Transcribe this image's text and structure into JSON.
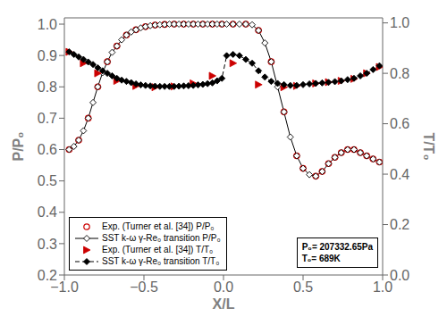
{
  "chart_data": {
    "type": "line",
    "xlabel": "X/L",
    "ylabel": "P/P₀",
    "y2label": "T/T₀",
    "xlim": [
      -1,
      1
    ],
    "xticks": [
      {
        "value": -1,
        "label": "−1.0"
      },
      {
        "value": -0.5,
        "label": "−0.5"
      },
      {
        "value": 0,
        "label": "0.0"
      },
      0.5,
      {
        "value": 1,
        "label": "1.0"
      }
    ],
    "ylim": [
      0.2,
      1.02
    ],
    "yticks": [
      0.2,
      0.3,
      0.4,
      0.5,
      0.6,
      0.7,
      0.8,
      0.9,
      {
        "value": 1,
        "label": "1.0"
      }
    ],
    "y2lim": [
      0.0,
      1.02
    ],
    "y2ticks": [
      {
        "value": 0,
        "label": "0.0"
      },
      0.2,
      0.4,
      0.6,
      0.8,
      {
        "value": 1,
        "label": "1.0"
      }
    ],
    "grid": false,
    "legend": "lower left",
    "annotation": [
      "P₀= 207332.65Pa",
      "T₀= 689K"
    ],
    "series": [
      {
        "name": "Exp. (Turner et al. [34]) P/P₀",
        "type": "scatter",
        "color": "#cc0000",
        "marker": "open_circle",
        "line_style": "none",
        "x": [
          -0.97,
          -0.91,
          -0.85,
          -0.79,
          -0.73,
          -0.67,
          -0.61,
          -0.55,
          -0.49,
          -0.43,
          -0.37,
          -0.31,
          -0.25,
          -0.19,
          -0.13,
          -0.07,
          -0.01,
          0.06,
          0.14,
          0.22,
          0.3,
          0.38,
          0.46,
          0.5,
          0.58,
          0.62,
          0.66,
          0.7,
          0.74,
          0.78,
          0.82,
          0.86,
          0.9,
          0.94,
          0.98
        ],
        "values": [
          0.6,
          0.63,
          0.7,
          0.8,
          0.88,
          0.93,
          0.965,
          0.982,
          0.992,
          0.997,
          0.999,
          1.0,
          1.0,
          1.0,
          1.0,
          1.0,
          1.0,
          1.0,
          1.0,
          0.98,
          0.88,
          0.72,
          0.58,
          0.54,
          0.515,
          0.53,
          0.555,
          0.575,
          0.59,
          0.6,
          0.6,
          0.59,
          0.58,
          0.57,
          0.56
        ]
      },
      {
        "name": "SST k-ω γ-Re₀ transition P/P₀",
        "type": "line",
        "color": "#000000",
        "marker": "open_diamond",
        "line_style": "solid",
        "x": [
          -0.97,
          -0.94,
          -0.91,
          -0.88,
          -0.85,
          -0.82,
          -0.79,
          -0.76,
          -0.73,
          -0.7,
          -0.67,
          -0.64,
          -0.61,
          -0.58,
          -0.55,
          -0.52,
          -0.49,
          -0.46,
          -0.43,
          -0.4,
          -0.37,
          -0.34,
          -0.31,
          -0.28,
          -0.25,
          -0.22,
          -0.19,
          -0.16,
          -0.13,
          -0.1,
          -0.07,
          -0.04,
          -0.01,
          0.02,
          0.06,
          0.1,
          0.14,
          0.18,
          0.22,
          0.26,
          0.3,
          0.34,
          0.38,
          0.42,
          0.46,
          0.5,
          0.54,
          0.58,
          0.62,
          0.66,
          0.7,
          0.74,
          0.78,
          0.82,
          0.86,
          0.9,
          0.94,
          0.98
        ],
        "values": [
          0.6,
          0.61,
          0.63,
          0.66,
          0.7,
          0.75,
          0.8,
          0.845,
          0.88,
          0.91,
          0.93,
          0.95,
          0.965,
          0.975,
          0.982,
          0.988,
          0.992,
          0.995,
          0.997,
          0.998,
          0.999,
          1.0,
          1.0,
          1.0,
          1.0,
          1.0,
          1.0,
          1.0,
          1.0,
          1.0,
          1.0,
          1.0,
          1.0,
          1.0,
          1.0,
          1.0,
          1.0,
          0.998,
          0.98,
          0.94,
          0.88,
          0.8,
          0.72,
          0.64,
          0.58,
          0.54,
          0.52,
          0.515,
          0.53,
          0.555,
          0.575,
          0.59,
          0.6,
          0.6,
          0.59,
          0.58,
          0.57,
          0.56
        ]
      },
      {
        "name": "Exp. (Turner et al. [34]) T/T₀",
        "type": "scatter",
        "color": "#cc0000",
        "marker": "triangle_right",
        "line_style": "none",
        "axis": "y2",
        "x": [
          -0.97,
          -0.88,
          -0.79,
          -0.67,
          -0.55,
          -0.43,
          -0.31,
          -0.19,
          -0.07,
          0.06,
          0.22,
          0.38,
          0.46,
          0.58,
          0.66,
          0.74,
          0.82,
          0.9,
          0.98
        ],
        "values": [
          0.885,
          0.84,
          0.8,
          0.77,
          0.75,
          0.745,
          0.748,
          0.76,
          0.79,
          0.84,
          0.755,
          0.745,
          0.75,
          0.76,
          0.765,
          0.77,
          0.778,
          0.8,
          0.825
        ]
      },
      {
        "name": "SST k-ω γ-Re₀ transition T/T₀",
        "type": "line",
        "color": "#000000",
        "marker": "diamond",
        "line_style": "dashed",
        "axis": "y2",
        "x": [
          -0.97,
          -0.94,
          -0.91,
          -0.88,
          -0.85,
          -0.82,
          -0.79,
          -0.76,
          -0.73,
          -0.7,
          -0.67,
          -0.64,
          -0.61,
          -0.58,
          -0.55,
          -0.52,
          -0.49,
          -0.46,
          -0.43,
          -0.4,
          -0.37,
          -0.34,
          -0.31,
          -0.28,
          -0.25,
          -0.22,
          -0.19,
          -0.16,
          -0.13,
          -0.1,
          -0.07,
          -0.04,
          -0.01,
          0.02,
          0.06,
          0.1,
          0.14,
          0.18,
          0.22,
          0.26,
          0.3,
          0.34,
          0.38,
          0.42,
          0.46,
          0.5,
          0.54,
          0.58,
          0.62,
          0.66,
          0.7,
          0.74,
          0.78,
          0.82,
          0.86,
          0.9,
          0.94,
          0.98
        ],
        "values": [
          0.885,
          0.875,
          0.865,
          0.855,
          0.845,
          0.835,
          0.822,
          0.81,
          0.8,
          0.79,
          0.78,
          0.773,
          0.768,
          0.763,
          0.758,
          0.754,
          0.752,
          0.75,
          0.749,
          0.748,
          0.748,
          0.748,
          0.748,
          0.749,
          0.75,
          0.751,
          0.752,
          0.754,
          0.756,
          0.759,
          0.762,
          0.77,
          0.78,
          0.87,
          0.875,
          0.87,
          0.855,
          0.84,
          0.81,
          0.785,
          0.768,
          0.76,
          0.755,
          0.752,
          0.752,
          0.755,
          0.758,
          0.76,
          0.762,
          0.764,
          0.767,
          0.77,
          0.775,
          0.78,
          0.79,
          0.8,
          0.815,
          0.83
        ]
      }
    ]
  }
}
